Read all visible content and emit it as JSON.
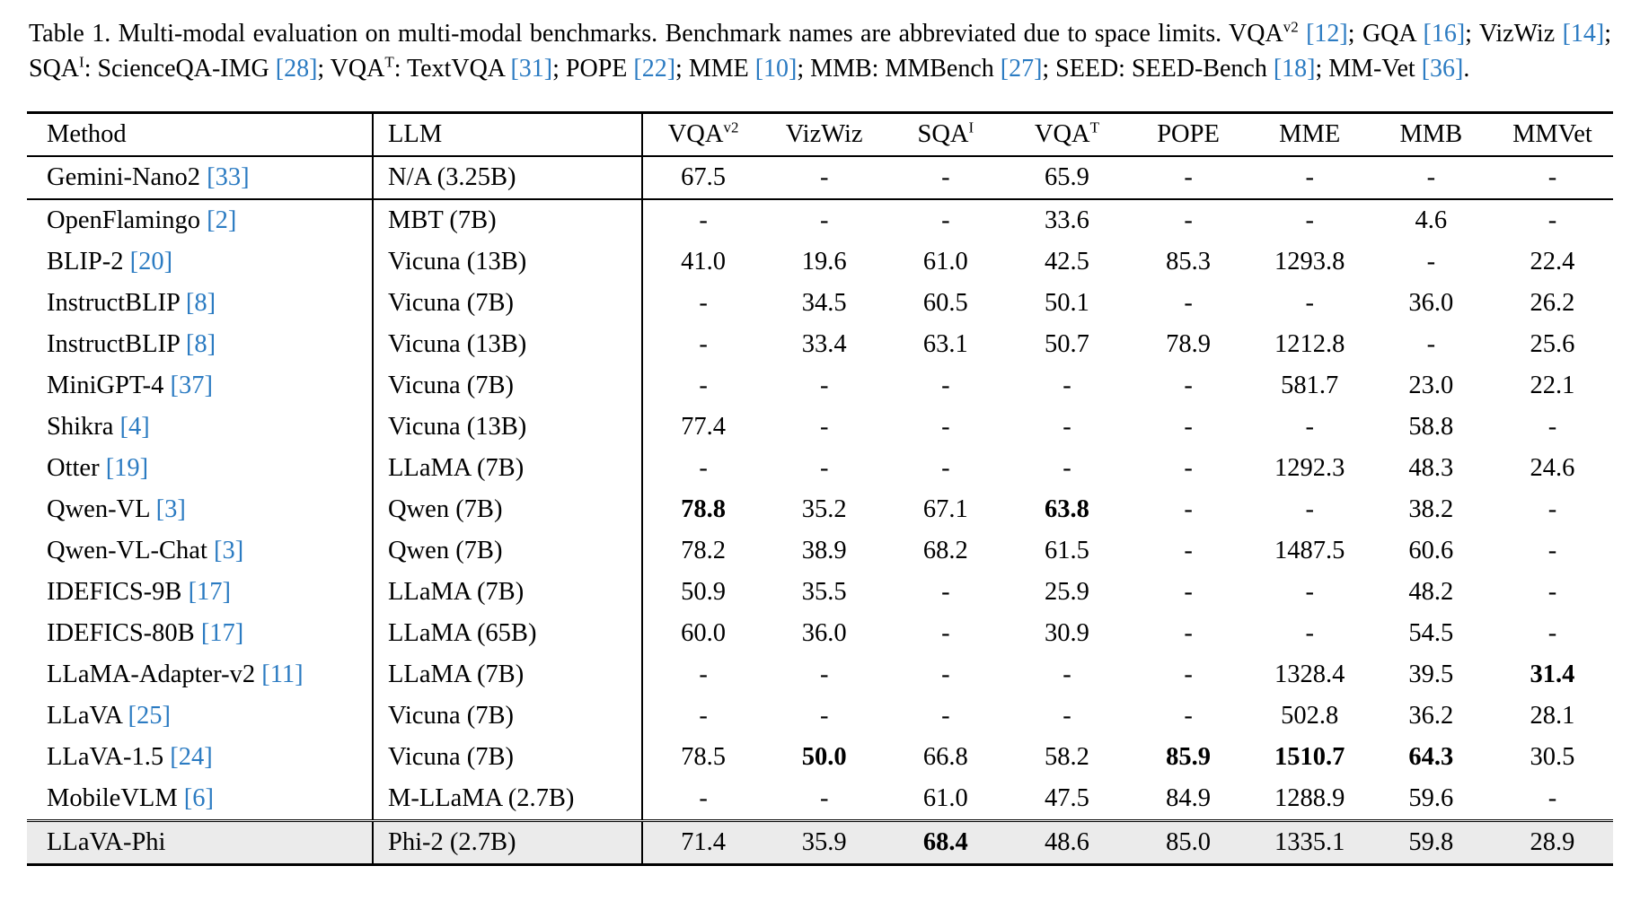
{
  "colors": {
    "citation_blue": "#2b7bc2",
    "highlight_row_bg": "#ebebeb",
    "rule_black": "#000000"
  },
  "caption": {
    "segments": [
      {
        "type": "text",
        "text": "Table 1.  Multi-modal evaluation on multi-modal benchmarks.  Benchmark names are abbreviated due to space limits.  VQA"
      },
      {
        "type": "sup",
        "text": "v2"
      },
      {
        "type": "text",
        "text": " "
      },
      {
        "type": "cite",
        "text": "[12]"
      },
      {
        "type": "text",
        "text": "; GQA "
      },
      {
        "type": "cite",
        "text": "[16]"
      },
      {
        "type": "text",
        "text": "; VizWiz "
      },
      {
        "type": "cite",
        "text": "[14]"
      },
      {
        "type": "text",
        "text": "; SQA"
      },
      {
        "type": "sup",
        "text": "I"
      },
      {
        "type": "text",
        "text": ": ScienceQA-IMG "
      },
      {
        "type": "cite",
        "text": "[28]"
      },
      {
        "type": "text",
        "text": "; VQA"
      },
      {
        "type": "sup",
        "text": "T"
      },
      {
        "type": "text",
        "text": ": TextVQA "
      },
      {
        "type": "cite",
        "text": "[31]"
      },
      {
        "type": "text",
        "text": "; POPE "
      },
      {
        "type": "cite",
        "text": "[22]"
      },
      {
        "type": "text",
        "text": "; MME "
      },
      {
        "type": "cite",
        "text": "[10]"
      },
      {
        "type": "text",
        "text": "; MMB: MMBench "
      },
      {
        "type": "cite",
        "text": "[27]"
      },
      {
        "type": "text",
        "text": "; SEED: SEED-Bench "
      },
      {
        "type": "cite",
        "text": "[18]"
      },
      {
        "type": "text",
        "text": "; MM-Vet "
      },
      {
        "type": "cite",
        "text": "[36]"
      },
      {
        "type": "text",
        "text": "."
      }
    ]
  },
  "chart_data": {
    "type": "table",
    "title": "Table 1. Multi-modal evaluation on multi-modal benchmarks.",
    "columns": [
      "Method",
      "LLM",
      "VQA^v2",
      "VizWiz",
      "SQA^I",
      "VQA^T",
      "POPE",
      "MME",
      "MMB",
      "MMVet"
    ]
  },
  "table": {
    "headers": [
      {
        "label": "Method",
        "sup": ""
      },
      {
        "label": "LLM",
        "sup": ""
      },
      {
        "label": "VQA",
        "sup": "v2"
      },
      {
        "label": "VizWiz",
        "sup": ""
      },
      {
        "label": "SQA",
        "sup": "I"
      },
      {
        "label": "VQA",
        "sup": "T"
      },
      {
        "label": "POPE",
        "sup": ""
      },
      {
        "label": "MME",
        "sup": ""
      },
      {
        "label": "MMB",
        "sup": ""
      },
      {
        "label": "MMVet",
        "sup": ""
      }
    ],
    "rows": [
      {
        "group": 0,
        "method": "Gemini-Nano2",
        "cite": "[33]",
        "llm": "N/A (3.25B)",
        "vals": [
          "67.5",
          "-",
          "-",
          "65.9",
          "-",
          "-",
          "-",
          "-"
        ],
        "bold": [],
        "highlight": false
      },
      {
        "group": 1,
        "method": "OpenFlamingo",
        "cite": "[2]",
        "llm": "MBT (7B)",
        "vals": [
          "-",
          "-",
          "-",
          "33.6",
          "-",
          "-",
          "4.6",
          "-"
        ],
        "bold": [],
        "highlight": false
      },
      {
        "group": 1,
        "method": "BLIP-2",
        "cite": "[20]",
        "llm": "Vicuna (13B)",
        "vals": [
          "41.0",
          "19.6",
          "61.0",
          "42.5",
          "85.3",
          "1293.8",
          "-",
          "22.4"
        ],
        "bold": [],
        "highlight": false
      },
      {
        "group": 1,
        "method": "InstructBLIP",
        "cite": "[8]",
        "llm": "Vicuna (7B)",
        "vals": [
          "-",
          "34.5",
          "60.5",
          "50.1",
          "-",
          "-",
          "36.0",
          "26.2"
        ],
        "bold": [],
        "highlight": false
      },
      {
        "group": 1,
        "method": "InstructBLIP",
        "cite": "[8]",
        "llm": "Vicuna (13B)",
        "vals": [
          "-",
          "33.4",
          "63.1",
          "50.7",
          "78.9",
          "1212.8",
          "-",
          "25.6"
        ],
        "bold": [],
        "highlight": false
      },
      {
        "group": 1,
        "method": "MiniGPT-4",
        "cite": "[37]",
        "llm": "Vicuna (7B)",
        "vals": [
          "-",
          "-",
          "-",
          "-",
          "-",
          "581.7",
          "23.0",
          "22.1"
        ],
        "bold": [],
        "highlight": false
      },
      {
        "group": 1,
        "method": "Shikra",
        "cite": "[4]",
        "llm": "Vicuna (13B)",
        "vals": [
          "77.4",
          "-",
          "-",
          "-",
          "-",
          "-",
          "58.8",
          "-"
        ],
        "bold": [],
        "highlight": false
      },
      {
        "group": 1,
        "method": "Otter",
        "cite": "[19]",
        "llm": "LLaMA (7B)",
        "vals": [
          "-",
          "-",
          "-",
          "-",
          "-",
          "1292.3",
          "48.3",
          "24.6"
        ],
        "bold": [],
        "highlight": false
      },
      {
        "group": 1,
        "method": "Qwen-VL",
        "cite": "[3]",
        "llm": "Qwen (7B)",
        "vals": [
          "78.8",
          "35.2",
          "67.1",
          "63.8",
          "-",
          "-",
          "38.2",
          "-"
        ],
        "bold": [
          0,
          3
        ],
        "highlight": false
      },
      {
        "group": 1,
        "method": "Qwen-VL-Chat",
        "cite": "[3]",
        "llm": "Qwen (7B)",
        "vals": [
          "78.2",
          "38.9",
          "68.2",
          "61.5",
          "-",
          "1487.5",
          "60.6",
          "-"
        ],
        "bold": [],
        "highlight": false
      },
      {
        "group": 1,
        "method": "IDEFICS-9B",
        "cite": "[17]",
        "llm": "LLaMA (7B)",
        "vals": [
          "50.9",
          "35.5",
          "-",
          "25.9",
          "-",
          "-",
          "48.2",
          "-"
        ],
        "bold": [],
        "highlight": false
      },
      {
        "group": 1,
        "method": "IDEFICS-80B",
        "cite": "[17]",
        "llm": "LLaMA (65B)",
        "vals": [
          "60.0",
          "36.0",
          "-",
          "30.9",
          "-",
          "-",
          "54.5",
          "-"
        ],
        "bold": [],
        "highlight": false
      },
      {
        "group": 1,
        "method": "LLaMA-Adapter-v2",
        "cite": "[11]",
        "llm": "LLaMA (7B)",
        "vals": [
          "-",
          "-",
          "-",
          "-",
          "-",
          "1328.4",
          "39.5",
          "31.4"
        ],
        "bold": [
          7
        ],
        "highlight": false
      },
      {
        "group": 1,
        "method": "LLaVA",
        "cite": "[25]",
        "llm": "Vicuna (7B)",
        "vals": [
          "-",
          "-",
          "-",
          "-",
          "-",
          "502.8",
          "36.2",
          "28.1"
        ],
        "bold": [],
        "highlight": false
      },
      {
        "group": 1,
        "method": "LLaVA-1.5",
        "cite": "[24]",
        "llm": "Vicuna (7B)",
        "vals": [
          "78.5",
          "50.0",
          "66.8",
          "58.2",
          "85.9",
          "1510.7",
          "64.3",
          "30.5"
        ],
        "bold": [
          1,
          4,
          5,
          6
        ],
        "highlight": false
      },
      {
        "group": 1,
        "method": "MobileVLM",
        "cite": "[6]",
        "llm": "M-LLaMA (2.7B)",
        "vals": [
          "-",
          "-",
          "61.0",
          "47.5",
          "84.9",
          "1288.9",
          "59.6",
          "-"
        ],
        "bold": [],
        "highlight": false
      },
      {
        "group": 2,
        "method": "LLaVA-Phi",
        "cite": "",
        "llm": "Phi-2 (2.7B)",
        "vals": [
          "71.4",
          "35.9",
          "68.4",
          "48.6",
          "85.0",
          "1335.1",
          "59.8",
          "28.9"
        ],
        "bold": [
          2
        ],
        "highlight": true
      }
    ]
  }
}
